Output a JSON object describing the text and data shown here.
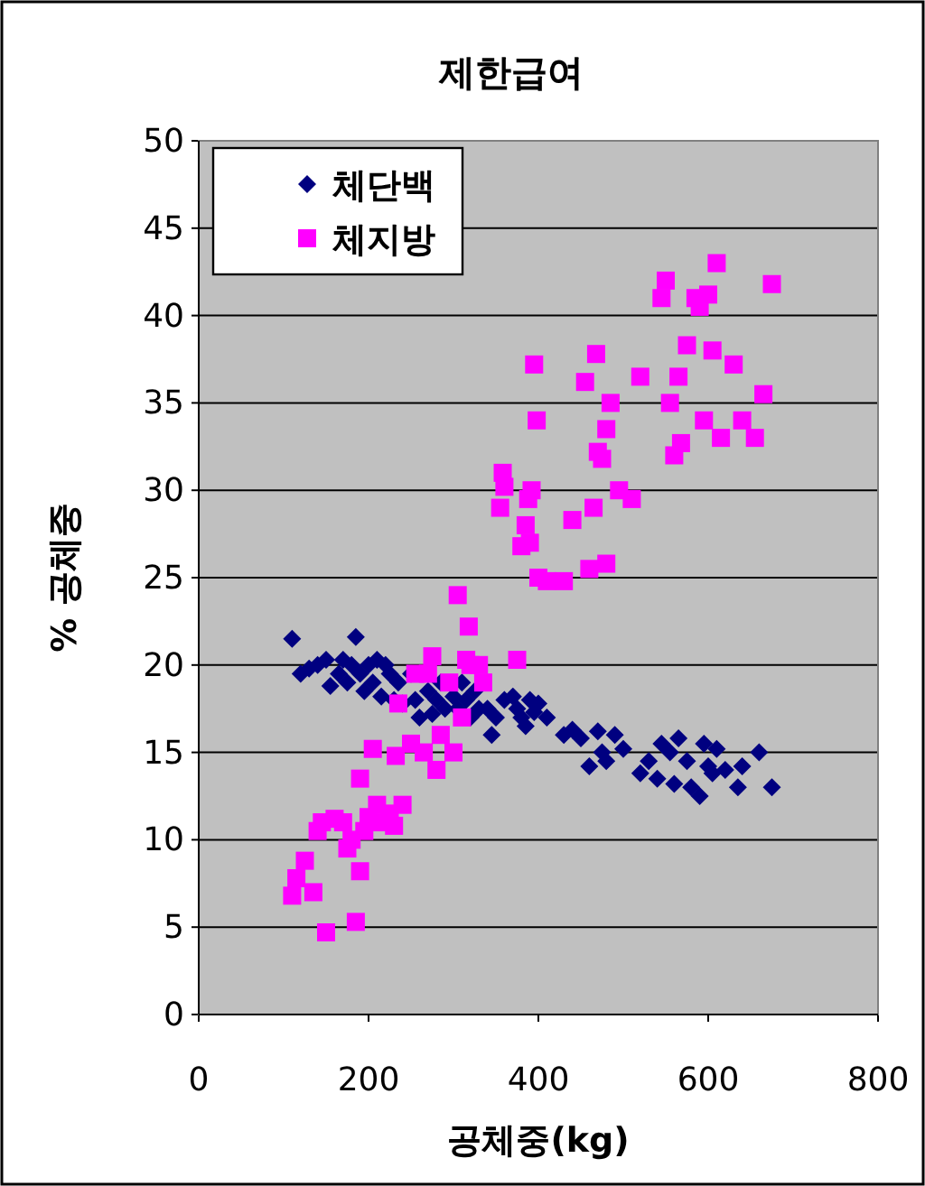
{
  "chart_data": {
    "type": "scatter",
    "title": "제한급여",
    "xlabel": "공체중(kg)",
    "ylabel": "% 공체중",
    "xlim": [
      0,
      800
    ],
    "xticks": [
      0,
      200,
      400,
      600,
      800
    ],
    "ylim": [
      0,
      50
    ],
    "yticks": [
      0,
      5,
      10,
      15,
      20,
      25,
      30,
      35,
      40,
      45,
      50
    ],
    "grid": "y",
    "legend": "top left",
    "series": [
      {
        "name": "체단백",
        "color": "#000080",
        "marker": "diamond",
        "x": [
          110,
          120,
          130,
          140,
          150,
          155,
          165,
          170,
          175,
          180,
          185,
          190,
          195,
          200,
          205,
          210,
          215,
          220,
          225,
          230,
          235,
          240,
          250,
          255,
          260,
          270,
          275,
          280,
          285,
          290,
          300,
          305,
          310,
          315,
          320,
          325,
          330,
          340,
          345,
          350,
          360,
          370,
          375,
          380,
          385,
          390,
          395,
          400,
          410,
          430,
          440,
          450,
          460,
          470,
          475,
          480,
          490,
          500,
          520,
          530,
          540,
          545,
          555,
          560,
          565,
          575,
          580,
          590,
          595,
          600,
          605,
          610,
          620,
          635,
          640,
          660,
          675
        ],
        "values": [
          21.5,
          19.5,
          19.8,
          20,
          20.3,
          18.8,
          19.5,
          20.3,
          19,
          20,
          21.6,
          19.5,
          18.5,
          20,
          19,
          20.3,
          18.2,
          20,
          19.5,
          18,
          19,
          17.8,
          19.5,
          18,
          17,
          18.5,
          17.2,
          18,
          19,
          17.5,
          18.2,
          17.5,
          19,
          18,
          17,
          18.5,
          17.5,
          17.5,
          16,
          17,
          18,
          18.2,
          17.5,
          17,
          16.5,
          18,
          17.3,
          17.8,
          17,
          16,
          16.3,
          15.8,
          14.2,
          16.2,
          15,
          14.5,
          16,
          15.2,
          13.8,
          14.5,
          13.5,
          15.5,
          15,
          13.2,
          15.8,
          14.5,
          13,
          12.5,
          15.5,
          14.2,
          13.8,
          15.2,
          14,
          13,
          14.2,
          15,
          13
        ]
      },
      {
        "name": "체지방",
        "color": "#ff00ff",
        "marker": "square",
        "x": [
          110,
          115,
          125,
          135,
          140,
          145,
          150,
          160,
          170,
          175,
          180,
          185,
          190,
          190,
          195,
          200,
          205,
          210,
          215,
          225,
          230,
          232,
          235,
          240,
          250,
          255,
          265,
          270,
          275,
          280,
          285,
          295,
          300,
          305,
          310,
          315,
          318,
          320,
          330,
          335,
          355,
          358,
          360,
          375,
          380,
          385,
          388,
          390,
          392,
          395,
          398,
          400,
          410,
          430,
          440,
          455,
          460,
          465,
          468,
          470,
          475,
          480,
          480,
          485,
          495,
          510,
          520,
          545,
          550,
          555,
          560,
          565,
          568,
          575,
          585,
          590,
          595,
          600,
          605,
          610,
          615,
          630,
          640,
          655,
          665,
          675
        ],
        "values": [
          6.8,
          7.8,
          8.8,
          7,
          10.5,
          11,
          4.7,
          11.2,
          11,
          9.5,
          10,
          5.3,
          8.2,
          13.5,
          10.5,
          11.3,
          15.2,
          12,
          11,
          11.5,
          10.8,
          14.8,
          17.8,
          12,
          15.5,
          19.5,
          15,
          19.5,
          20.5,
          14,
          16,
          19,
          15,
          24,
          17,
          20.3,
          22.2,
          20,
          20,
          19,
          29,
          31,
          30.2,
          20.3,
          26.8,
          28,
          29.5,
          27,
          30,
          37.2,
          34,
          25,
          24.8,
          24.8,
          28.3,
          36.2,
          25.5,
          29,
          37.8,
          32.2,
          31.8,
          25.8,
          33.5,
          35,
          30,
          29.5,
          36.5,
          41,
          42,
          35,
          32,
          36.5,
          32.7,
          38.3,
          41,
          40.5,
          34,
          41.2,
          38,
          43,
          33,
          37.2,
          34,
          33,
          35.5,
          41.8
        ]
      }
    ]
  }
}
